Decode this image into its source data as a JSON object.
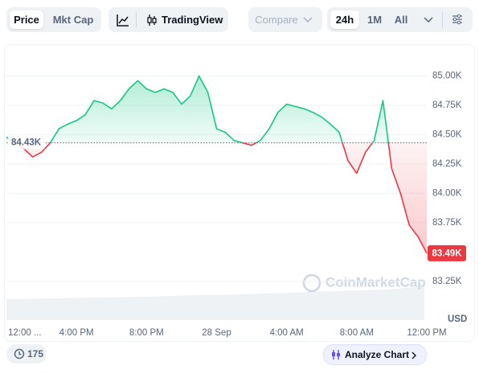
{
  "toolbar": {
    "tabs": [
      "Price",
      "Mkt Cap"
    ],
    "tradingview": "TradingView",
    "compare": "Compare",
    "ranges": [
      "24h",
      "1M",
      "All"
    ]
  },
  "chart_data": {
    "type": "line",
    "x": [
      0,
      0.5,
      1,
      1.5,
      2,
      2.5,
      3,
      3.5,
      4,
      4.5,
      5,
      5.5,
      6,
      6.5,
      7,
      7.5,
      8,
      8.5,
      9,
      9.5,
      10,
      10.5,
      11,
      11.5,
      12,
      12.5,
      13,
      13.5,
      14,
      14.5,
      15,
      15.5,
      16,
      16.5,
      17,
      17.5,
      18,
      18.5,
      19,
      19.5,
      20,
      20.5,
      21,
      21.5,
      22,
      22.5,
      23,
      23.5,
      24
    ],
    "values": [
      84480,
      84430,
      84380,
      84310,
      84350,
      84430,
      84550,
      84590,
      84620,
      84670,
      84790,
      84770,
      84720,
      84790,
      84890,
      84960,
      84890,
      84860,
      84890,
      84860,
      84760,
      84830,
      85000,
      84860,
      84550,
      84520,
      84450,
      84430,
      84410,
      84450,
      84550,
      84690,
      84760,
      84740,
      84720,
      84690,
      84650,
      84590,
      84520,
      84280,
      84170,
      84350,
      84450,
      84790,
      84210,
      84000,
      83730,
      83630,
      83490
    ],
    "xlim": [
      0,
      24
    ],
    "xticks": [
      {
        "value": 0,
        "label": "12:00 ..."
      },
      {
        "value": 4,
        "label": "4:00 PM"
      },
      {
        "value": 8,
        "label": "8:00 PM"
      },
      {
        "value": 12,
        "label": "28 Sep"
      },
      {
        "value": 16,
        "label": "4:00 AM"
      },
      {
        "value": 20,
        "label": "8:00 AM"
      },
      {
        "value": 24,
        "label": "12:00 PM"
      }
    ],
    "ylim": [
      82920,
      85250
    ],
    "yticks": [
      {
        "value": 83250,
        "label": "83.25K"
      },
      {
        "value": 83750,
        "label": "83.75K"
      },
      {
        "value": 84000,
        "label": "84.00K"
      },
      {
        "value": 84250,
        "label": "84.25K"
      },
      {
        "value": 84500,
        "label": "84.50K"
      },
      {
        "value": 84750,
        "label": "84.75K"
      },
      {
        "value": 85000,
        "label": "85.00K"
      }
    ],
    "y_label": "USD",
    "reference": {
      "value": 84430,
      "label": "84.43K"
    },
    "current_price": {
      "value": 83490,
      "label": "83.49K"
    },
    "colors": {
      "up": "#16c784",
      "down": "#ea3943"
    },
    "grid": true,
    "watermark": "CoinMarketCap"
  },
  "footer": {
    "comments": "175",
    "analyze": "Analyze Chart"
  }
}
